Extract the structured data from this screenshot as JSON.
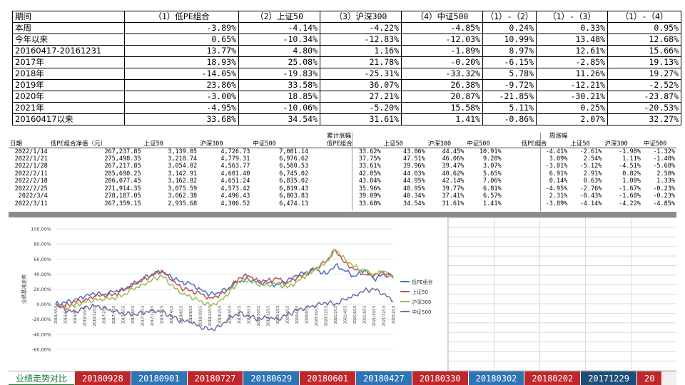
{
  "summary": {
    "headers": [
      "期间",
      "（1）低PE组合",
      "（2）上证50",
      "（3）沪深300",
      "（4）中证500",
      "（1）-（2）",
      "（1）-（3）",
      "（1）-（4）"
    ],
    "rows": [
      [
        "本周",
        "-3.89%",
        "-4.14%",
        "-4.22%",
        "-4.85%",
        "0.24%",
        "0.33%",
        "0.95%"
      ],
      [
        "今年以来",
        "0.65%",
        "-10.34%",
        "-12.83%",
        "-12.03%",
        "10.99%",
        "13.48%",
        "12.68%"
      ],
      [
        "20160417-20161231",
        "13.77%",
        "4.80%",
        "1.16%",
        "-1.89%",
        "8.97%",
        "12.61%",
        "15.66%"
      ],
      [
        "2017年",
        "18.93%",
        "25.08%",
        "21.78%",
        "-0.20%",
        "-6.15%",
        "-2.85%",
        "19.13%"
      ],
      [
        "2018年",
        "-14.05%",
        "-19.83%",
        "-25.31%",
        "-33.32%",
        "5.78%",
        "11.26%",
        "19.27%"
      ],
      [
        "2019年",
        "23.86%",
        "33.58%",
        "36.07%",
        "26.38%",
        "-9.72%",
        "-12.21%",
        "-2.52%"
      ],
      [
        "2020年",
        "-3.00%",
        "18.85%",
        "27.21%",
        "20.87%",
        "-21.85%",
        "-30.21%",
        "-23.87%"
      ],
      [
        "2021年",
        "-4.95%",
        "-10.06%",
        "-5.20%",
        "15.58%",
        "5.11%",
        "0.25%",
        "-20.53%"
      ],
      [
        "20160417以来",
        "33.68%",
        "34.54%",
        "31.61%",
        "1.41%",
        "-0.86%",
        "2.07%",
        "32.27%"
      ]
    ]
  },
  "detail": {
    "group_cum": "累计涨幅",
    "group_week": "周涨幅",
    "headers": [
      "日期",
      "低PE组合净值（元）",
      "上证50",
      "沪深300",
      "中证500",
      "低PE组合",
      "上证50",
      "沪深300",
      "中证500",
      "低PE组合",
      "上证50",
      "沪深300",
      "中证500"
    ],
    "rows": [
      [
        "2022/1/14",
        "267,237.85",
        "3,139.05",
        "4,726.73",
        "7,081.14",
        "33.62%",
        "43.86%",
        "44.45%",
        "10.91%",
        "-4.41%",
        "-2.61%",
        "-1.98%",
        "-1.32%"
      ],
      [
        "2022/1/21",
        "275,498.35",
        "3,218.74",
        "4,779.31",
        "6,976.62",
        "37.75%",
        "47.51%",
        "46.06%",
        "9.28%",
        "3.09%",
        "2.54%",
        "1.11%",
        "-1.48%"
      ],
      [
        "2022/1/28",
        "267,217.85",
        "3,054.02",
        "4,563.77",
        "6,580.53",
        "33.61%",
        "39.96%",
        "39.47%",
        "3.07%",
        "-3.01%",
        "-5.12%",
        "-4.51%",
        "-5.68%"
      ],
      [
        "2022/2/11",
        "285,690.25",
        "3,142.91",
        "4,601.40",
        "6,745.02",
        "42.85%",
        "44.03%",
        "40.62%",
        "5.65%",
        "6.91%",
        "2.91%",
        "0.82%",
        "2.50%"
      ],
      [
        "2022/2/18",
        "286,077.45",
        "3,162.82",
        "4,651.24",
        "6,835.02",
        "43.04%",
        "44.95%",
        "42.14%",
        "7.06%",
        "0.14%",
        "0.63%",
        "1.08%",
        "1.33%"
      ],
      [
        "2022/2/25",
        "271,914.35",
        "3,075.59",
        "4,573.42",
        "6,819.43",
        "35.96%",
        "40.95%",
        "39.77%",
        "6.81%",
        "-4.95%",
        "-2.76%",
        "-1.67%",
        "-0.23%"
      ],
      [
        "2022/3/4",
        "278,187.05",
        "3,062.38",
        "4,496.43",
        "6,803.83",
        "39.09%",
        "40.34%",
        "37.41%",
        "6.57%",
        "2.31%",
        "-0.43%",
        "-1.68%",
        "-0.23%"
      ],
      [
        "2022/3/11",
        "267,359.15",
        "2,935.68",
        "4,306.52",
        "6,474.13",
        "33.68%",
        "34.54%",
        "31.61%",
        "1.41%",
        "-3.89%",
        "-4.14%",
        "-4.22%",
        "-4.85%"
      ]
    ]
  },
  "chart_data": {
    "type": "line",
    "ylabel": "业绩基准走势",
    "ylim": [
      -60,
      100
    ],
    "yticks": [
      "100.00%",
      "80.00%",
      "60.00%",
      "40.00%",
      "20.00%",
      "0.00%",
      "-20.00%",
      "-40.00%",
      "-60.00%"
    ],
    "x_ticks": [
      "2016/4/15",
      "2016/6/15",
      "2016/8/15",
      "2016/10/15",
      "2016/12/15",
      "2017/2/15",
      "2017/4/15",
      "2017/6/15",
      "2017/8/15",
      "2017/10/15",
      "2017/12/15",
      "2018/2/15",
      "2018/4/15",
      "2018/6/15",
      "2018/8/15",
      "2018/10/15",
      "2018/12/15",
      "2019/2/15",
      "2019/4/15",
      "2019/6/15",
      "2019/8/15",
      "2019/10/15",
      "2019/12/15",
      "2020/2/15",
      "2020/4/15",
      "2020/6/15",
      "2020/8/15",
      "2020/10/15",
      "2020/12/15",
      "2021/2/15",
      "2021/4/15",
      "2021/6/15",
      "2021/8/15",
      "2021/10/15",
      "2021/12/15",
      "2022/2/15"
    ],
    "series": [
      {
        "name": "低PE组合",
        "color": "#4472C4",
        "values": [
          0,
          2,
          6,
          10,
          14,
          13,
          16,
          20,
          26,
          33,
          40,
          43,
          36,
          30,
          27,
          20,
          13,
          15,
          22,
          30,
          33,
          30,
          28,
          26,
          31,
          38,
          43,
          46,
          40,
          52,
          44,
          37,
          46,
          33,
          40,
          37
        ]
      },
      {
        "name": "上证50",
        "color": "#C0504D",
        "values": [
          0,
          -2,
          3,
          5,
          10,
          12,
          13,
          18,
          27,
          32,
          38,
          45,
          32,
          22,
          18,
          14,
          8,
          12,
          20,
          35,
          38,
          30,
          32,
          34,
          28,
          35,
          40,
          48,
          56,
          72,
          55,
          46,
          40,
          38,
          42,
          36
        ]
      },
      {
        "name": "沪深300",
        "color": "#9BBB59",
        "values": [
          0,
          -5,
          -1,
          3,
          6,
          6,
          8,
          12,
          20,
          26,
          32,
          38,
          26,
          14,
          10,
          4,
          -2,
          4,
          15,
          30,
          32,
          25,
          26,
          28,
          22,
          30,
          38,
          46,
          55,
          73,
          60,
          50,
          44,
          40,
          44,
          34
        ]
      },
      {
        "name": "中证500",
        "color": "#8064A2",
        "values": [
          0,
          -8,
          -10,
          -5,
          -2,
          -5,
          -10,
          -12,
          -14,
          -12,
          -8,
          -10,
          -16,
          -22,
          -24,
          -30,
          -34,
          -30,
          -18,
          -12,
          -16,
          -20,
          -18,
          -20,
          -14,
          -8,
          -4,
          -2,
          2,
          0,
          6,
          12,
          18,
          20,
          14,
          4
        ]
      }
    ],
    "legend": "right"
  },
  "tabs": [
    "业绩走势对比",
    "20180928",
    "20180901",
    "20180727",
    "20180629",
    "20180601",
    "20180427",
    "20180330",
    "20180302",
    "20180202",
    "20171229",
    "20"
  ],
  "tab_colors": [
    "#ffffff",
    "#c0272d",
    "#2e75b6",
    "#c0272d",
    "#2e75b6",
    "#c0272d",
    "#2e75b6",
    "#c0272d",
    "#2e75b6",
    "#c0272d",
    "#1f4e79",
    "#c0272d"
  ]
}
